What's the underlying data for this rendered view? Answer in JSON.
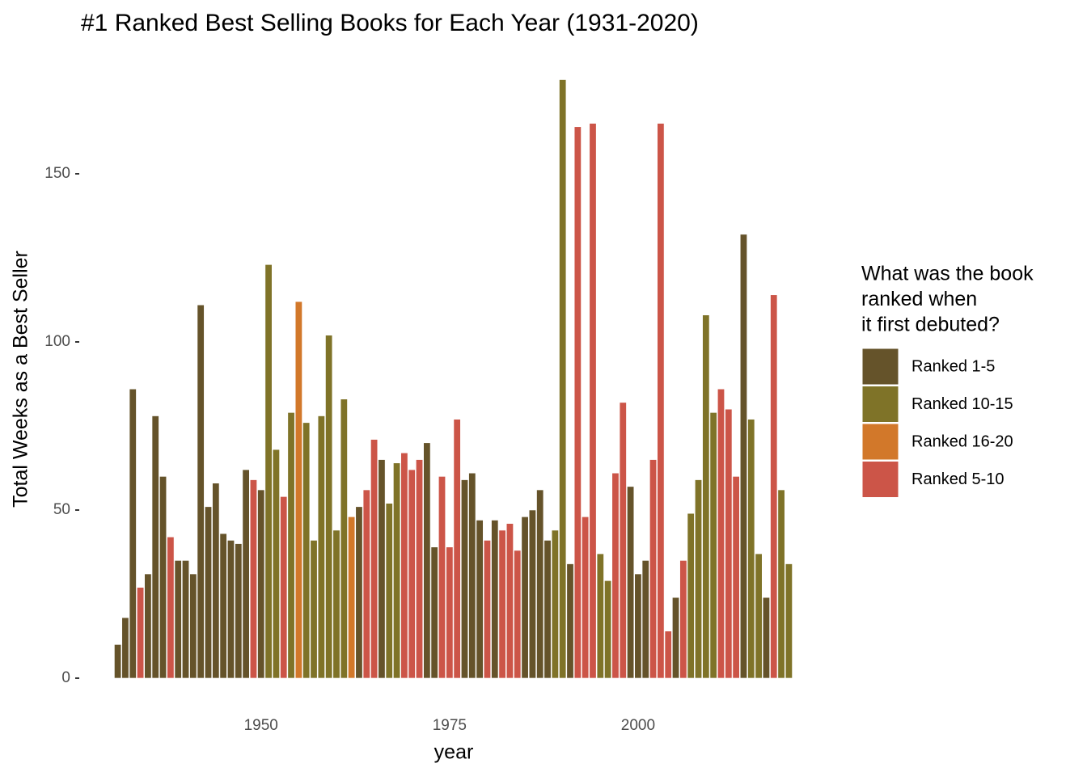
{
  "chart_data": {
    "type": "bar",
    "title": "#1 Ranked Best Selling Books for Each Year (1931-2020)",
    "xlabel": "year",
    "ylabel": "Total Weeks as a Best Seller",
    "legend_title": [
      "What was the book",
      "ranked when",
      "it first debuted?"
    ],
    "x": [
      1931,
      1932,
      1933,
      1934,
      1935,
      1936,
      1937,
      1938,
      1939,
      1940,
      1941,
      1942,
      1943,
      1944,
      1945,
      1946,
      1947,
      1948,
      1949,
      1950,
      1951,
      1952,
      1953,
      1954,
      1955,
      1956,
      1957,
      1958,
      1959,
      1960,
      1961,
      1962,
      1963,
      1964,
      1965,
      1966,
      1967,
      1968,
      1969,
      1970,
      1971,
      1972,
      1973,
      1974,
      1975,
      1976,
      1977,
      1978,
      1979,
      1980,
      1981,
      1982,
      1983,
      1984,
      1985,
      1986,
      1987,
      1988,
      1989,
      1990,
      1991,
      1992,
      1993,
      1994,
      1995,
      1996,
      1997,
      1998,
      1999,
      2000,
      2001,
      2002,
      2003,
      2004,
      2005,
      2006,
      2007,
      2008,
      2009,
      2010,
      2011,
      2012,
      2013,
      2014,
      2015,
      2016,
      2017,
      2018,
      2019,
      2020
    ],
    "series": [
      {
        "name": "Ranked 1-5",
        "color": "#65532a",
        "values": [
          10,
          18,
          86,
          null,
          31,
          78,
          60,
          null,
          35,
          35,
          31,
          111,
          51,
          58,
          43,
          41,
          40,
          62,
          null,
          56,
          null,
          null,
          null,
          null,
          null,
          null,
          null,
          null,
          null,
          null,
          null,
          null,
          51,
          null,
          null,
          65,
          null,
          null,
          null,
          null,
          null,
          70,
          39,
          null,
          null,
          null,
          59,
          61,
          47,
          null,
          47,
          null,
          null,
          null,
          48,
          50,
          56,
          41,
          null,
          null,
          34,
          null,
          null,
          null,
          null,
          null,
          null,
          null,
          57,
          31,
          35,
          null,
          null,
          null,
          24,
          null,
          null,
          null,
          null,
          null,
          null,
          null,
          null,
          132,
          null,
          null,
          24,
          null,
          null,
          null
        ]
      },
      {
        "name": "Ranked 10-15",
        "color": "#7f7328",
        "values": [
          null,
          null,
          null,
          null,
          null,
          null,
          null,
          null,
          null,
          null,
          null,
          null,
          null,
          null,
          null,
          null,
          null,
          null,
          null,
          null,
          123,
          68,
          null,
          79,
          null,
          76,
          41,
          78,
          102,
          44,
          83,
          null,
          null,
          null,
          null,
          null,
          52,
          64,
          null,
          null,
          null,
          null,
          null,
          null,
          null,
          null,
          null,
          null,
          null,
          null,
          null,
          null,
          null,
          null,
          null,
          null,
          null,
          null,
          44,
          178,
          null,
          null,
          null,
          null,
          37,
          29,
          null,
          null,
          null,
          null,
          null,
          null,
          null,
          null,
          null,
          null,
          49,
          59,
          108,
          79,
          null,
          null,
          null,
          null,
          77,
          37,
          null,
          null,
          56,
          34
        ]
      },
      {
        "name": "Ranked 16-20",
        "color": "#d2782a",
        "values": [
          null,
          null,
          null,
          null,
          null,
          null,
          null,
          null,
          null,
          null,
          null,
          null,
          null,
          null,
          null,
          null,
          null,
          null,
          null,
          null,
          null,
          null,
          null,
          null,
          112,
          null,
          null,
          null,
          null,
          null,
          null,
          48,
          null,
          null,
          null,
          null,
          null,
          null,
          null,
          null,
          null,
          null,
          null,
          null,
          null,
          null,
          null,
          null,
          null,
          null,
          null,
          null,
          null,
          null,
          null,
          null,
          null,
          null,
          null,
          null,
          null,
          null,
          null,
          null,
          null,
          null,
          null,
          null,
          null,
          null,
          null,
          null,
          null,
          null,
          null,
          null,
          null,
          null,
          null,
          null,
          null,
          null,
          null,
          null,
          null,
          null,
          null,
          null,
          null,
          null
        ]
      },
      {
        "name": "Ranked 5-10",
        "color": "#cc5548",
        "values": [
          null,
          null,
          null,
          27,
          null,
          null,
          null,
          42,
          null,
          null,
          null,
          null,
          null,
          null,
          null,
          null,
          null,
          null,
          59,
          null,
          null,
          null,
          54,
          null,
          null,
          null,
          null,
          null,
          null,
          null,
          null,
          null,
          null,
          56,
          71,
          null,
          null,
          null,
          67,
          62,
          65,
          null,
          null,
          60,
          39,
          77,
          null,
          null,
          null,
          41,
          null,
          44,
          46,
          38,
          null,
          null,
          null,
          null,
          null,
          null,
          null,
          164,
          48,
          165,
          null,
          null,
          61,
          82,
          null,
          null,
          null,
          65,
          165,
          14,
          null,
          35,
          null,
          null,
          null,
          null,
          86,
          80,
          60,
          null,
          null,
          null,
          null,
          114,
          null,
          null
        ]
      }
    ],
    "xlim": [
      1926,
      2025
    ],
    "ylim": [
      -8.9,
      186.9
    ],
    "xticks": [
      1950,
      1975,
      2000
    ],
    "yticks": [
      0,
      50,
      100,
      150
    ],
    "grid": false
  }
}
